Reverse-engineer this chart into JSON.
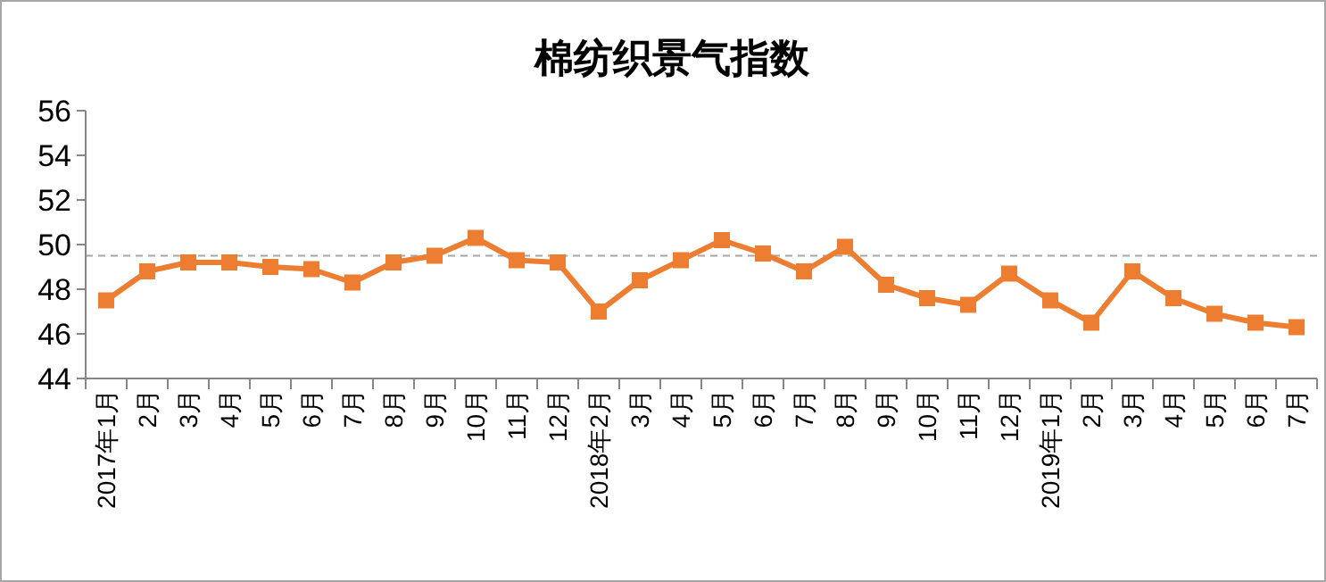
{
  "chart_data": {
    "type": "line",
    "title": "棉纺织景气指数",
    "categories": [
      "2017年1月",
      "2月",
      "3月",
      "4月",
      "5月",
      "6月",
      "7月",
      "8月",
      "9月",
      "10月",
      "11月",
      "12月",
      "2018年2月",
      "3月",
      "4月",
      "5月",
      "6月",
      "7月",
      "8月",
      "9月",
      "10月",
      "11月",
      "12月",
      "2019年1月",
      "2月",
      "3月",
      "4月",
      "5月",
      "6月",
      "7月"
    ],
    "series": [
      {
        "color": "#ed7d31",
        "values": [
          47.5,
          48.8,
          49.2,
          49.2,
          49.0,
          48.9,
          48.3,
          49.2,
          49.5,
          50.3,
          49.3,
          49.2,
          47.0,
          48.4,
          49.3,
          50.2,
          49.6,
          48.8,
          49.9,
          48.2,
          47.6,
          47.3,
          48.7,
          47.5,
          46.5,
          48.8,
          47.6,
          46.9,
          46.5,
          46.3
        ]
      }
    ],
    "ylim": [
      44,
      56
    ],
    "yticks": [
      44,
      46,
      48,
      50,
      52,
      54,
      56
    ],
    "grid": false,
    "marker": "square",
    "line_style": "solid",
    "ref_lines": [
      {
        "axis": "y",
        "value": 49.5,
        "color": "#a6a6a6",
        "line_style": "dashed"
      }
    ]
  }
}
